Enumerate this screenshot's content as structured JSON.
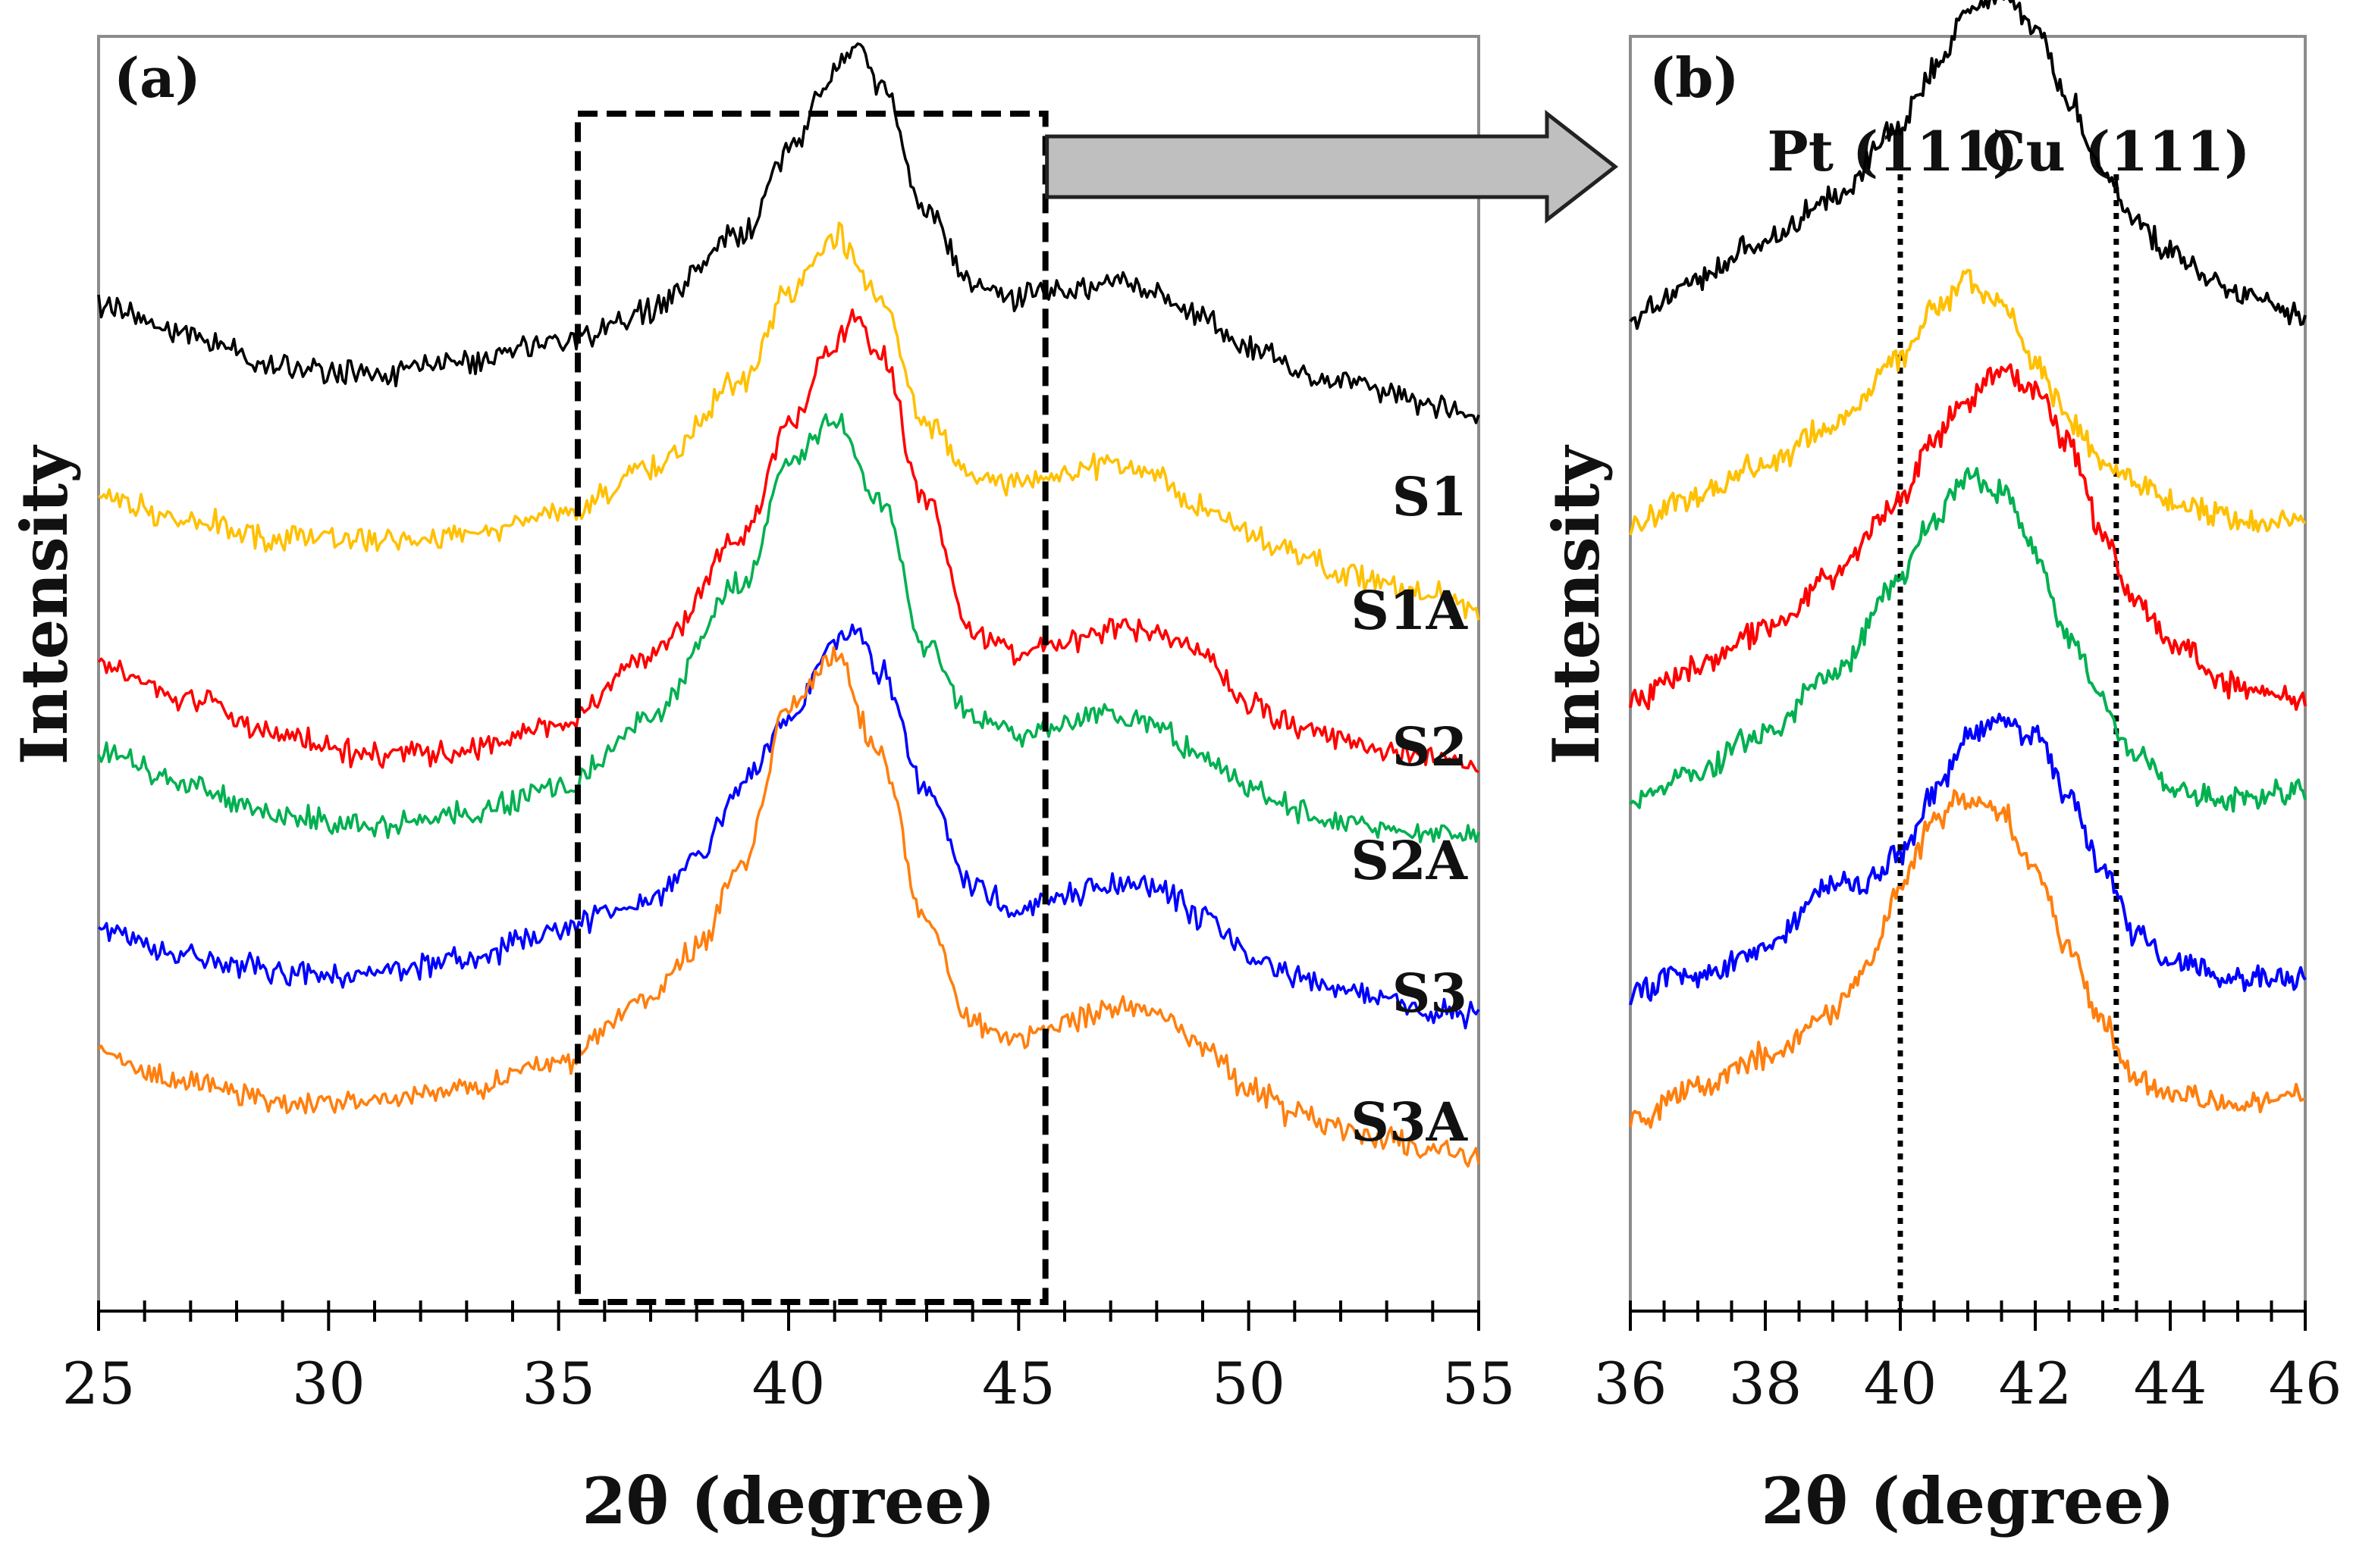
{
  "chart_data": [
    {
      "panel_label": "(a)",
      "type": "line",
      "xlabel": "2θ (degree)",
      "ylabel": "Intensity",
      "xlim": [
        25,
        55
      ],
      "ylim": [
        0,
        10
      ],
      "xticks": [
        25,
        30,
        35,
        40,
        45,
        50,
        55
      ],
      "zoom_region": [
        35.5,
        45.5
      ],
      "series": [
        {
          "name": "S1",
          "color": "#000000",
          "offset": 7.0,
          "x": [
            25,
            27,
            29,
            31,
            33,
            35,
            37,
            39,
            40,
            41,
            41.5,
            42,
            43,
            44,
            45,
            46,
            47,
            48,
            49,
            50,
            51,
            52,
            53,
            54,
            55
          ],
          "y": [
            0.9,
            0.65,
            0.4,
            0.35,
            0.45,
            0.6,
            0.85,
            1.45,
            2.1,
            2.7,
            2.95,
            2.6,
            1.65,
            1.05,
            0.95,
            1.0,
            1.1,
            1.0,
            0.8,
            0.55,
            0.4,
            0.3,
            0.2,
            0.1,
            0.0
          ]
        },
        {
          "name": "S1A",
          "color": "#FFC000",
          "offset": 5.5,
          "x": [
            25,
            27,
            29,
            31,
            33,
            35,
            37,
            39,
            40,
            41,
            42,
            43,
            44,
            45,
            46,
            47,
            48,
            49,
            50,
            51,
            52,
            53,
            54,
            55
          ],
          "y": [
            0.9,
            0.7,
            0.55,
            0.55,
            0.6,
            0.75,
            1.1,
            1.8,
            2.5,
            2.95,
            2.45,
            1.45,
            1.05,
            1.0,
            1.05,
            1.15,
            1.05,
            0.8,
            0.6,
            0.45,
            0.3,
            0.2,
            0.12,
            0.0
          ]
        },
        {
          "name": "S2",
          "color": "#FF0000",
          "offset": 4.3,
          "x": [
            25,
            27,
            29,
            31,
            33,
            35,
            37,
            39,
            40,
            41,
            41.5,
            42,
            43,
            44,
            45,
            46,
            47,
            48,
            49,
            50,
            51,
            52,
            53,
            54,
            55
          ],
          "y": [
            0.75,
            0.5,
            0.2,
            0.05,
            0.1,
            0.3,
            0.85,
            1.75,
            2.65,
            3.3,
            3.5,
            3.2,
            2.05,
            1.0,
            0.85,
            0.95,
            1.05,
            1.05,
            0.85,
            0.45,
            0.3,
            0.2,
            0.1,
            0.05,
            0.0
          ]
        },
        {
          "name": "S2A",
          "color": "#00B050",
          "offset": 3.7,
          "x": [
            25,
            27,
            29,
            31,
            33,
            35,
            37,
            39,
            40,
            41,
            42,
            43,
            44,
            45,
            46,
            47,
            48,
            49,
            50,
            51,
            52,
            53,
            54,
            55
          ],
          "y": [
            0.7,
            0.4,
            0.2,
            0.1,
            0.2,
            0.4,
            0.95,
            2.0,
            2.95,
            3.3,
            2.65,
            1.5,
            0.95,
            0.8,
            0.9,
            1.0,
            0.9,
            0.65,
            0.4,
            0.25,
            0.15,
            0.08,
            0.05,
            0.0
          ]
        },
        {
          "name": "S3",
          "color": "#0000FF",
          "offset": 2.3,
          "x": [
            25,
            27,
            29,
            31,
            33,
            35,
            36,
            37,
            38,
            39,
            40,
            41,
            41.5,
            42,
            43,
            44,
            45,
            46,
            47,
            48,
            49,
            50,
            51,
            52,
            53,
            54,
            55
          ],
          "y": [
            0.7,
            0.5,
            0.35,
            0.35,
            0.45,
            0.7,
            0.8,
            0.9,
            1.25,
            1.85,
            2.35,
            2.95,
            3.05,
            2.7,
            1.8,
            1.05,
            0.85,
            0.95,
            1.05,
            1.0,
            0.8,
            0.5,
            0.3,
            0.2,
            0.12,
            0.05,
            0.0
          ]
        },
        {
          "name": "S3A",
          "color": "#FF7F0E",
          "offset": 1.2,
          "x": [
            25,
            27,
            29,
            31,
            33,
            35,
            37,
            38,
            39,
            40,
            41,
            42,
            43,
            44,
            45,
            46,
            47,
            48,
            49,
            50,
            51,
            52,
            53,
            54,
            55
          ],
          "y": [
            0.8,
            0.6,
            0.45,
            0.45,
            0.55,
            0.75,
            1.25,
            1.65,
            2.3,
            3.55,
            3.95,
            3.15,
            1.85,
            1.05,
            0.95,
            1.05,
            1.2,
            1.15,
            0.85,
            0.55,
            0.35,
            0.25,
            0.15,
            0.1,
            0.0
          ]
        }
      ]
    },
    {
      "panel_label": "(b)",
      "type": "line",
      "xlabel": "2θ (degree)",
      "ylabel": "Intensity",
      "xlim": [
        36,
        46
      ],
      "ylim": [
        0,
        10
      ],
      "xticks": [
        36,
        38,
        40,
        42,
        44,
        46
      ],
      "reference_lines": [
        {
          "label": "Pt (111)",
          "x": 40.0
        },
        {
          "label": "Cu (111)",
          "x": 43.2
        }
      ],
      "series": [
        {
          "name": "S1",
          "color": "#000000",
          "offset": 7.8,
          "x": [
            36,
            37,
            38,
            39,
            40,
            40.5,
            41,
            41.5,
            42,
            42.5,
            43,
            43.5,
            44,
            45,
            46
          ],
          "y": [
            0.0,
            0.3,
            0.6,
            0.95,
            1.5,
            1.95,
            2.4,
            2.55,
            2.25,
            1.7,
            1.15,
            0.75,
            0.5,
            0.2,
            0.0
          ]
        },
        {
          "name": "S1A",
          "color": "#FFC000",
          "offset": 6.2,
          "x": [
            36,
            37,
            38,
            39,
            40,
            40.5,
            41,
            41.5,
            42,
            42.5,
            43,
            44,
            45,
            46
          ],
          "y": [
            0.0,
            0.2,
            0.45,
            0.75,
            1.25,
            1.65,
            1.9,
            1.7,
            1.25,
            0.8,
            0.45,
            0.15,
            0.0,
            0.0
          ]
        },
        {
          "name": "S2",
          "color": "#FF0000",
          "offset": 4.8,
          "x": [
            36,
            37,
            38,
            39,
            40,
            40.5,
            41,
            41.5,
            42,
            42.5,
            43,
            43.5,
            44,
            45,
            46
          ],
          "y": [
            0.0,
            0.25,
            0.55,
            0.95,
            1.55,
            2.05,
            2.35,
            2.55,
            2.45,
            2.0,
            1.3,
            0.75,
            0.45,
            0.1,
            0.0
          ]
        },
        {
          "name": "S2A",
          "color": "#00B050",
          "offset": 4.0,
          "x": [
            36,
            37,
            38,
            39,
            40,
            40.5,
            41,
            41.5,
            42,
            42.5,
            43,
            43.5,
            44,
            45,
            46
          ],
          "y": [
            0.0,
            0.25,
            0.55,
            1.0,
            1.75,
            2.2,
            2.55,
            2.45,
            1.95,
            1.3,
            0.75,
            0.35,
            0.1,
            0.0,
            0.1
          ]
        },
        {
          "name": "S3",
          "color": "#0000FF",
          "offset": 2.5,
          "x": [
            36,
            37,
            38,
            39,
            39.5,
            40,
            40.5,
            41,
            41.5,
            42,
            42.5,
            43,
            43.5,
            44,
            45,
            46
          ],
          "y": [
            0.0,
            0.15,
            0.35,
            0.85,
            0.85,
            1.1,
            1.55,
            2.0,
            2.15,
            2.0,
            1.55,
            0.95,
            0.45,
            0.25,
            0.1,
            0.1
          ]
        },
        {
          "name": "S3A",
          "color": "#FF7F0E",
          "offset": 1.5,
          "x": [
            36,
            37,
            38,
            39,
            39.5,
            40,
            40.5,
            41,
            41.5,
            42,
            42.5,
            43,
            43.5,
            44,
            45,
            46
          ],
          "y": [
            0.0,
            0.25,
            0.5,
            0.85,
            1.2,
            1.8,
            2.35,
            2.55,
            2.4,
            1.95,
            1.35,
            0.75,
            0.3,
            0.2,
            0.1,
            0.2
          ]
        }
      ]
    }
  ]
}
